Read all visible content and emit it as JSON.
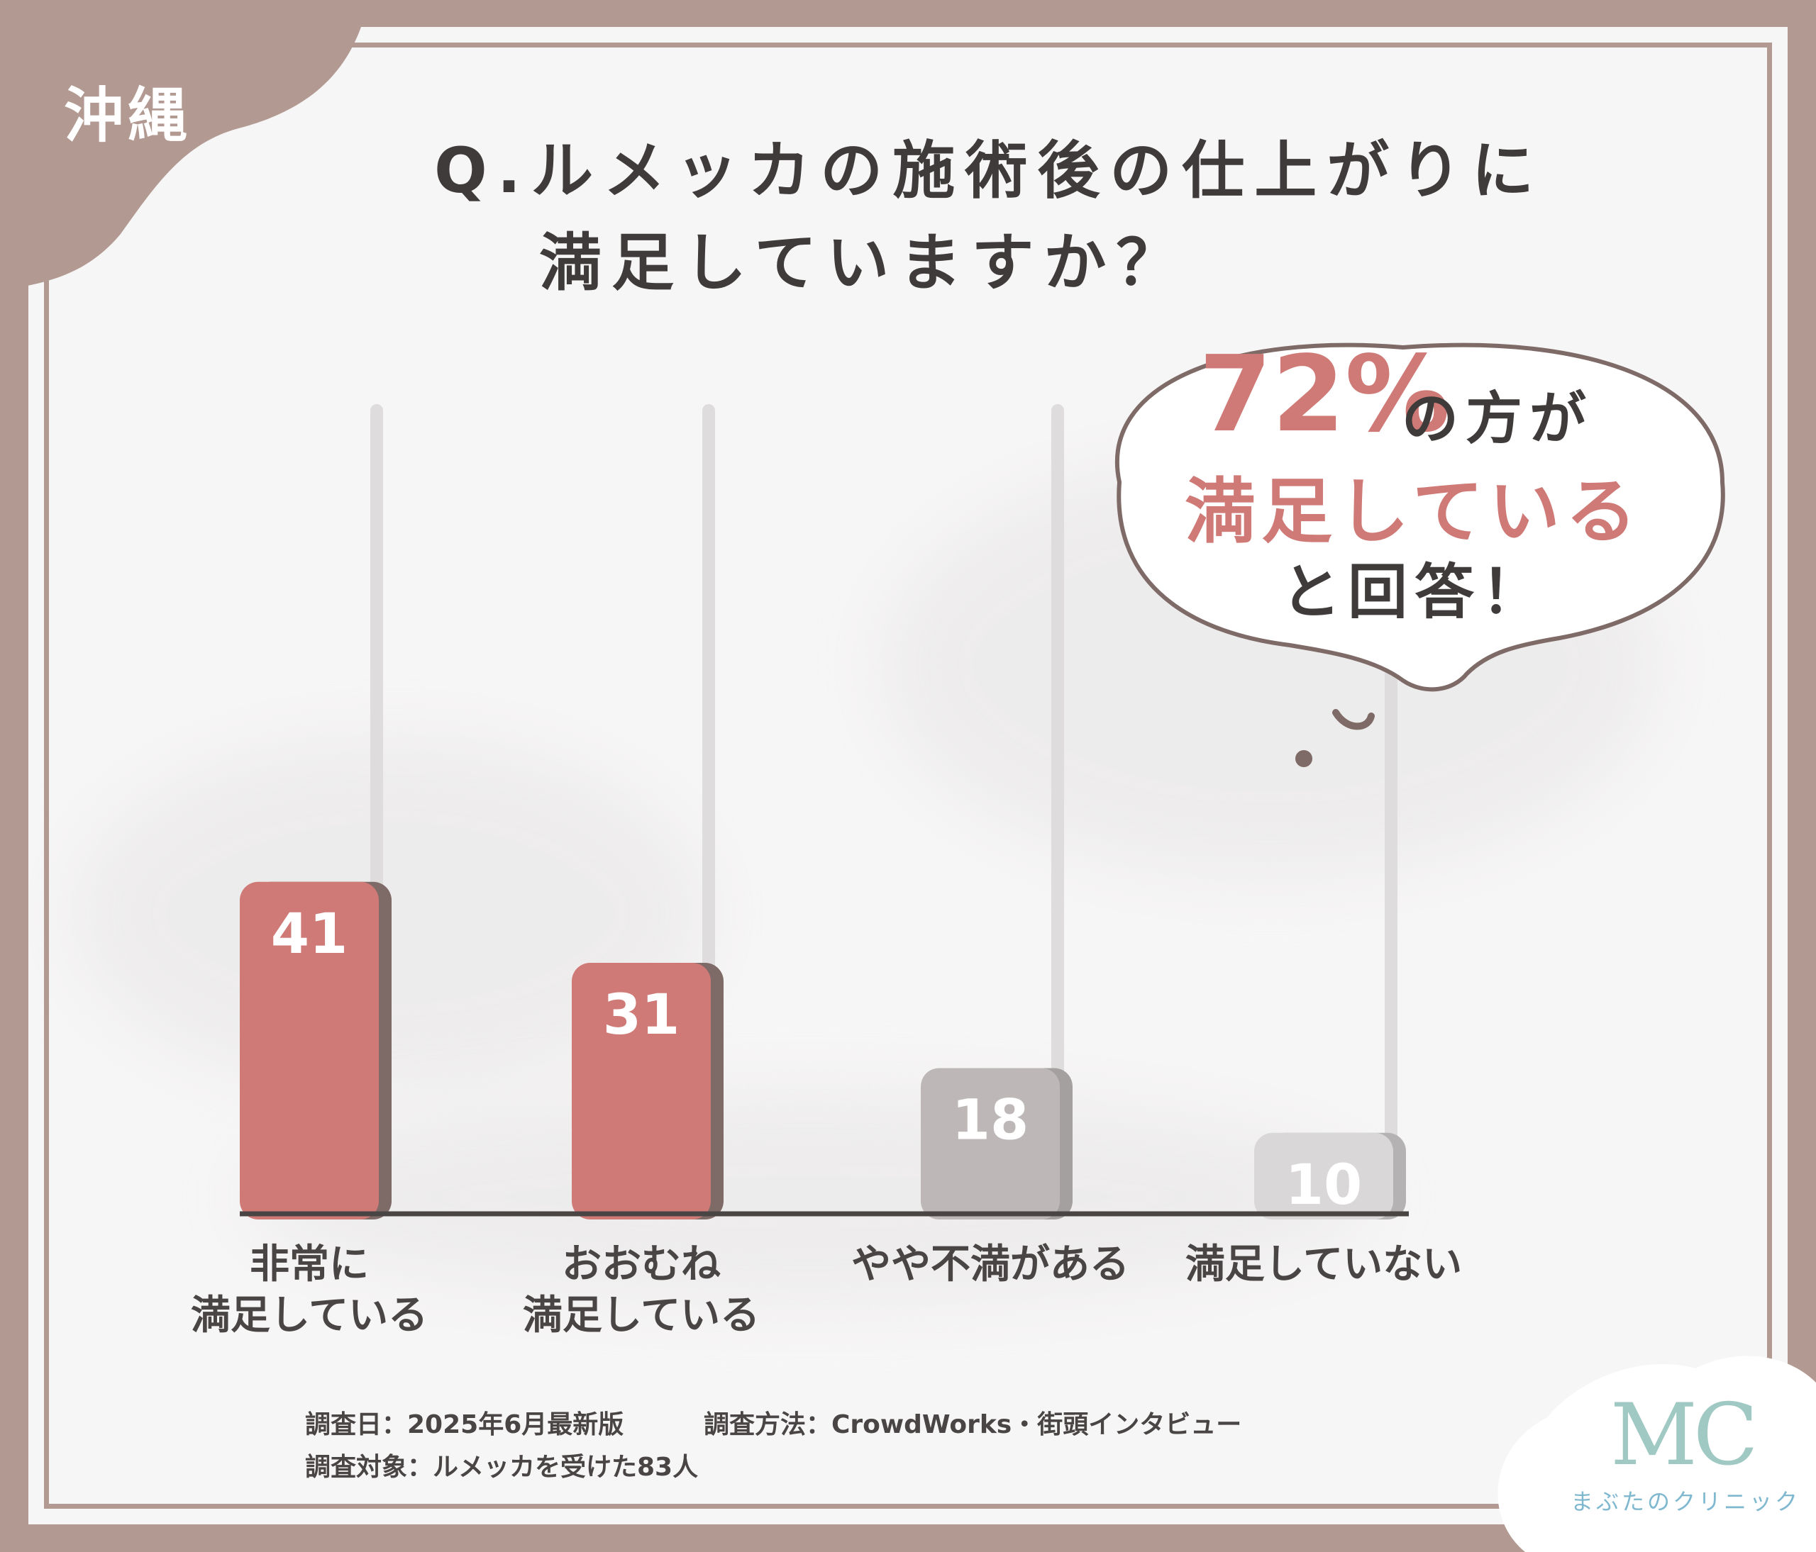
{
  "region": "沖縄",
  "title": {
    "line1": "Q.ルメッカの施術後の仕上がりに",
    "line2": "満足していますか？"
  },
  "callout": {
    "percent": "72%",
    "percent_suffix": "の方が",
    "highlight": "満足している",
    "ending": "と回答！"
  },
  "chart_data": {
    "type": "bar",
    "categories": [
      "非常に\n満足している",
      "おおむね\n満足している",
      "やや不満がある",
      "満足していない"
    ],
    "values": [
      41,
      31,
      18,
      10
    ],
    "value_labels": [
      "41",
      "31",
      "18",
      "10"
    ],
    "ylim": [
      0,
      100
    ],
    "title": "",
    "xlabel": "",
    "ylabel": "",
    "colors": [
      "#cf7a76",
      "#cf7a76",
      "#bdb8b7",
      "#d9d7d7"
    ],
    "shadow_colors": [
      "#7e6a66",
      "#7e6a66",
      "#a3a09f",
      "#b4b2b2"
    ],
    "grid": false,
    "legend": "none"
  },
  "survey": {
    "date": "調査日：2025年6月最新版",
    "method": "調査方法：CrowdWorks・街頭インタビュー",
    "target": "調査対象：ルメッカを受けた83人"
  },
  "logo": {
    "mark": "MC",
    "text": "まぶたのクリニック"
  },
  "colors": {
    "frame": "#b29991",
    "accent": "#cf7a76",
    "text_dark": "#3f3b3b"
  }
}
